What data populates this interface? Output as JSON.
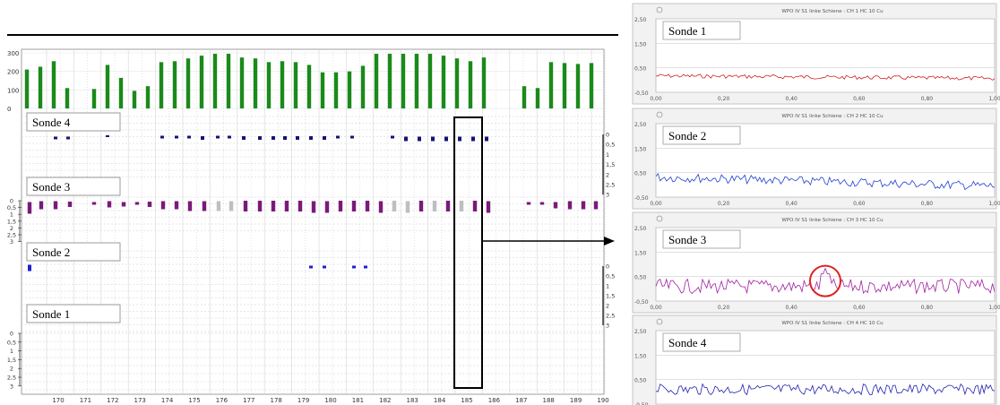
{
  "left_chart": {
    "x_labels": [
      "170",
      "171",
      "172",
      "173",
      "174",
      "175",
      "176",
      "177",
      "178",
      "179",
      "180",
      "181",
      "182",
      "183",
      "184",
      "185",
      "186",
      "187",
      "188",
      "189",
      "190"
    ],
    "top_axis_labels": [
      "300",
      "200",
      "100",
      "0"
    ],
    "left_depth_labels": [
      "0",
      "0,5",
      "1",
      "1,5",
      "2",
      "2,5",
      "3"
    ],
    "right_depth_labels": [
      "0",
      "0,5",
      "1",
      "1,5",
      "2",
      "2,5",
      "3"
    ],
    "sonde_labels": [
      "Sonde 4",
      "Sonde 3",
      "Sonde 2",
      "Sonde 1"
    ]
  },
  "panels": [
    {
      "name": "Sonde 1",
      "header": "WPO IV S1   linke Schiene :  CH 1    HC 10 Cu",
      "color": "#d02020"
    },
    {
      "name": "Sonde 2",
      "header": "WPO IV S1   linke Schiene :  CH 2    HC 10 Cu",
      "color": "#2040d0"
    },
    {
      "name": "Sonde 3",
      "header": "WPO IV S1   linke Schiene :  CH 3    HC 10 Cu",
      "color": "#a020a0"
    },
    {
      "name": "Sonde 4",
      "header": "WPO IV S1   linke Schiene :  CH 4    HC 10 Cu",
      "color": "#2020b0"
    }
  ],
  "panel_y_labels": [
    "2,50",
    "1,50",
    "0,50",
    "-0,50"
  ],
  "panel_x_labels": [
    "0,00",
    "0,20",
    "0,40",
    "0,60",
    "0,80",
    "1,00"
  ],
  "chart_data": {
    "type": "bar",
    "categories": [
      "170",
      "171",
      "172",
      "173",
      "174",
      "175",
      "176",
      "177",
      "178",
      "179",
      "180",
      "181",
      "182",
      "183",
      "184",
      "185",
      "186",
      "187",
      "188",
      "189",
      "190"
    ],
    "green_bars": [
      210,
      225,
      255,
      110,
      0,
      105,
      235,
      165,
      95,
      120,
      250,
      255,
      270,
      285,
      295,
      295,
      275,
      270,
      250,
      255,
      250,
      235,
      195,
      195,
      200,
      230,
      295,
      295,
      295,
      295,
      295,
      285,
      270,
      255,
      275,
      0,
      0,
      120,
      110,
      250,
      245,
      240,
      245
    ],
    "colors": {
      "green": "#1a8a1a",
      "navy": "#14147a",
      "purple": "#7a1a7a",
      "gray": "#bfbfbf",
      "blue": "#2020d0",
      "red": "#e02020"
    }
  }
}
